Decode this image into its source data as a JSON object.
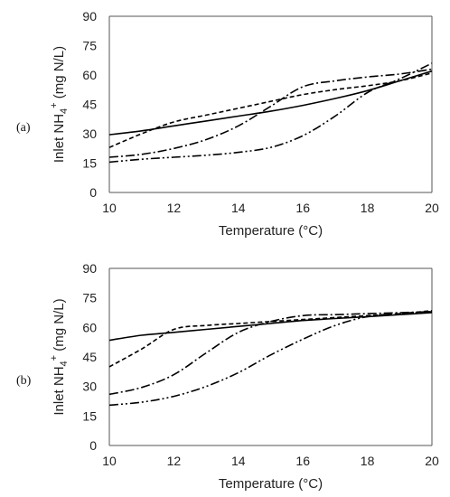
{
  "chart_data": [
    {
      "type": "line",
      "panel_label": "(a)",
      "xlabel": "Temperature (°C)",
      "ylabel_pre": "Inlet NH",
      "ylabel_sub": "4",
      "ylabel_sup": "+",
      "ylabel_post": " (mg N/L)",
      "xlim": [
        10,
        20
      ],
      "ylim": [
        0,
        90
      ],
      "xticks": [
        "10",
        "12",
        "14",
        "16",
        "18",
        "20"
      ],
      "yticks": [
        "0",
        "15",
        "30",
        "45",
        "60",
        "75",
        "90"
      ],
      "grid": false,
      "series": [
        {
          "style": "solid",
          "x": [
            10,
            11,
            12,
            13,
            14,
            15,
            16,
            17,
            18,
            19,
            20
          ],
          "y": [
            29.5,
            31.5,
            34,
            36.5,
            39,
            41.5,
            44.5,
            48,
            52,
            57,
            62
          ]
        },
        {
          "style": "dashed",
          "x": [
            10,
            11,
            12,
            13,
            14,
            15,
            16,
            17,
            18,
            19,
            20
          ],
          "y": [
            23,
            30,
            36,
            39.5,
            43,
            46.5,
            50,
            52.5,
            54.5,
            57,
            61
          ]
        },
        {
          "style": "dash-dot",
          "x": [
            10,
            11,
            12,
            13,
            14,
            15,
            16,
            17,
            18,
            19,
            20
          ],
          "y": [
            18,
            19.5,
            22.5,
            27,
            34,
            44,
            54,
            57,
            59,
            60.5,
            63
          ]
        },
        {
          "style": "dash-dot-dot",
          "x": [
            10,
            11,
            12,
            13,
            14,
            15,
            16,
            17,
            18,
            19,
            20
          ],
          "y": [
            15.5,
            17,
            18,
            19,
            20.5,
            23,
            29,
            39,
            51,
            58,
            66
          ]
        }
      ]
    },
    {
      "type": "line",
      "panel_label": "(b)",
      "xlabel": "Temperature (°C)",
      "ylabel_pre": "Inlet NH",
      "ylabel_sub": "4",
      "ylabel_sup": "+",
      "ylabel_post": " (mg N/L)",
      "xlim": [
        10,
        20
      ],
      "ylim": [
        0,
        90
      ],
      "xticks": [
        "10",
        "12",
        "14",
        "16",
        "18",
        "20"
      ],
      "yticks": [
        "0",
        "15",
        "30",
        "45",
        "60",
        "75",
        "90"
      ],
      "grid": false,
      "series": [
        {
          "style": "solid",
          "x": [
            10,
            11,
            12,
            13,
            14,
            15,
            16,
            17,
            18,
            19,
            20
          ],
          "y": [
            53.5,
            56,
            57.5,
            59,
            60.5,
            62,
            63.5,
            64.5,
            65.5,
            66.5,
            67.5
          ]
        },
        {
          "style": "dashed",
          "x": [
            10,
            11,
            12,
            13,
            14,
            15,
            16,
            17,
            18,
            19,
            20
          ],
          "y": [
            40,
            49,
            59,
            61,
            62,
            63,
            64,
            65,
            66,
            67,
            68.5
          ]
        },
        {
          "style": "dash-dot",
          "x": [
            10,
            11,
            12,
            13,
            14,
            15,
            16,
            17,
            18,
            19,
            20
          ],
          "y": [
            26,
            29.5,
            36,
            47,
            57.5,
            63,
            66,
            66.5,
            67,
            67.5,
            68
          ]
        },
        {
          "style": "dash-dot-dot",
          "x": [
            10,
            11,
            12,
            13,
            14,
            15,
            16,
            17,
            18,
            19,
            20
          ],
          "y": [
            20.5,
            22,
            25,
            30,
            37,
            46,
            54,
            61,
            65.5,
            67,
            68
          ]
        }
      ]
    }
  ]
}
